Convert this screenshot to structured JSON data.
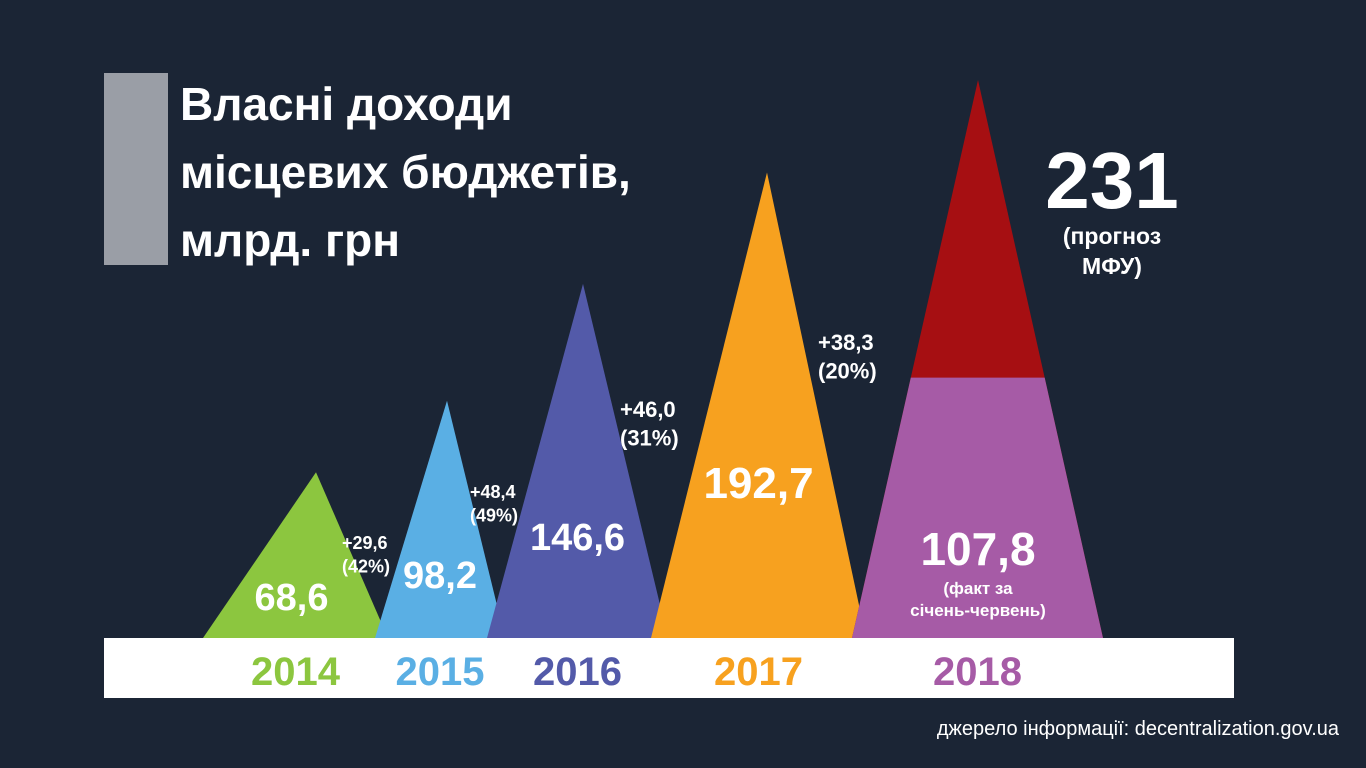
{
  "chart_data": {
    "type": "triangle",
    "title": [
      "Власні доходи",
      "місцевих бюджетів,",
      "млрд. грн"
    ],
    "categories": [
      "2014",
      "2015",
      "2016",
      "2017",
      "2018"
    ],
    "values": [
      68.6,
      98.2,
      146.6,
      192.7,
      231
    ],
    "value_labels": [
      "68,6",
      "98,2",
      "146,6",
      "192,7",
      "231"
    ],
    "colors": [
      "#8cc63f",
      "#5aafe4",
      "#535aa9",
      "#f7a11f",
      "#a60f12"
    ],
    "forecast_note": [
      "(прогноз",
      "МФУ)"
    ],
    "partial": {
      "value": 107.8,
      "label": "107,8",
      "color": "#a65ba6",
      "note": [
        "(факт за",
        "січень-червень)"
      ]
    },
    "growth": [
      {
        "value": 29.6,
        "label": "+29,6",
        "percent": 42,
        "percent_label": "(42%)"
      },
      {
        "value": 48.4,
        "label": "+48,4",
        "percent": 49,
        "percent_label": "(49%)"
      },
      {
        "value": 46.0,
        "label": "+46,0",
        "percent": 31,
        "percent_label": "(31%)"
      },
      {
        "value": 38.3,
        "label": "+38,3",
        "percent": 20,
        "percent_label": "(20%)"
      }
    ],
    "source": "джерело інформації: decentralization.gov.ua"
  }
}
